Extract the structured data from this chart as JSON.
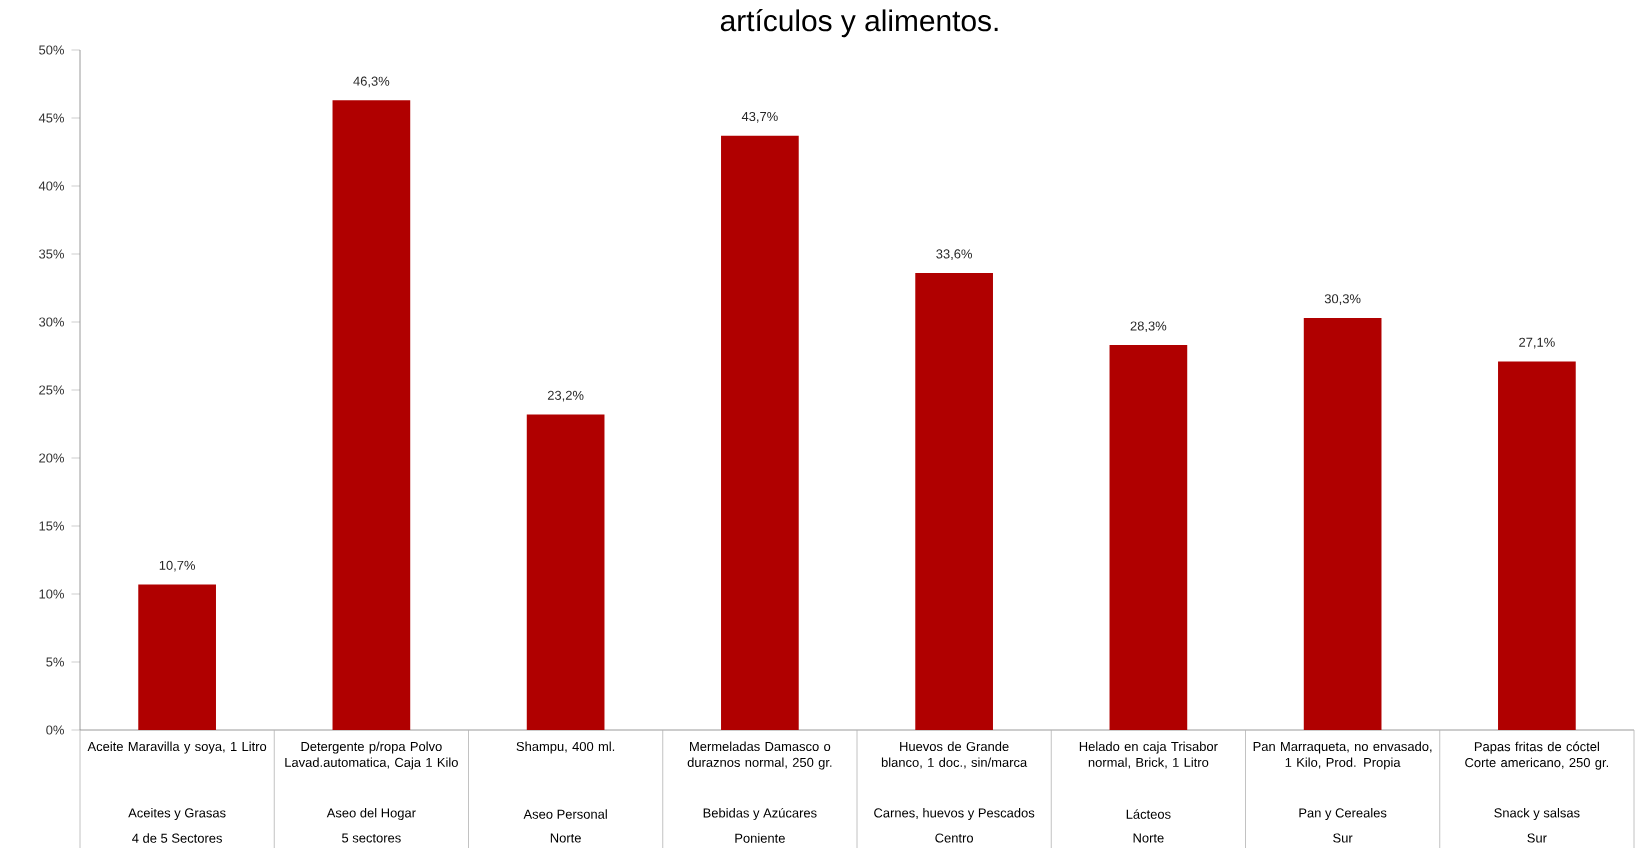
{
  "chart_data": {
    "type": "bar",
    "title": "artículos y alimentos.",
    "categories": [
      "Aceite Maravilla y soya, 1 Litro",
      "Detergente p/ropa Polvo Lavad.automatica, Caja 1 Kilo",
      "Shampu, 400 ml.",
      "Mermeladas Damasco o duraznos normal, 250 gr.",
      "Huevos de Grande blanco, 1 doc., sin/marca",
      "Helado en caja Trisabor normal, Brick, 1 Litro",
      "Pan Marraqueta, no envasado, 1 Kilo, Prod. Propia",
      "Papas fritas de cóctel Corte americano, 250 gr."
    ],
    "values": [
      10.7,
      46.3,
      23.2,
      43.7,
      33.6,
      28.3,
      30.3,
      27.1
    ],
    "value_labels": [
      "10,7%",
      "46,3%",
      "23,2%",
      "43,7%",
      "33,6%",
      "28,3%",
      "30,3%",
      "27,1%"
    ],
    "color": "#b00000",
    "ylim": [
      0,
      50
    ],
    "yticks": [
      {
        "value": 0,
        "label": "0%"
      },
      {
        "value": 5,
        "label": "5%"
      },
      {
        "value": 10,
        "label": "10%"
      },
      {
        "value": 15,
        "label": "15%"
      },
      {
        "value": 20,
        "label": "20%"
      },
      {
        "value": 25,
        "label": "25%"
      },
      {
        "value": 30,
        "label": "30%"
      },
      {
        "value": 35,
        "label": "35%"
      },
      {
        "value": 40,
        "label": "40%"
      },
      {
        "value": 45,
        "label": "45%"
      },
      {
        "value": 50,
        "label": "50%"
      }
    ],
    "annotations": [
      "Aceites y Grasas",
      "Aseo del Hogar",
      "Aseo Personal",
      "Bebidas y Azúcares",
      "Carnes, huevos y Pescados",
      "Lácteos",
      "Pan y Cereales",
      "Snack y salsas",
      "4 de 5 Sectores",
      "5 sectores",
      "Norte",
      "Poniente",
      "Centro",
      "Norte",
      "Sur",
      "Sur"
    ]
  }
}
